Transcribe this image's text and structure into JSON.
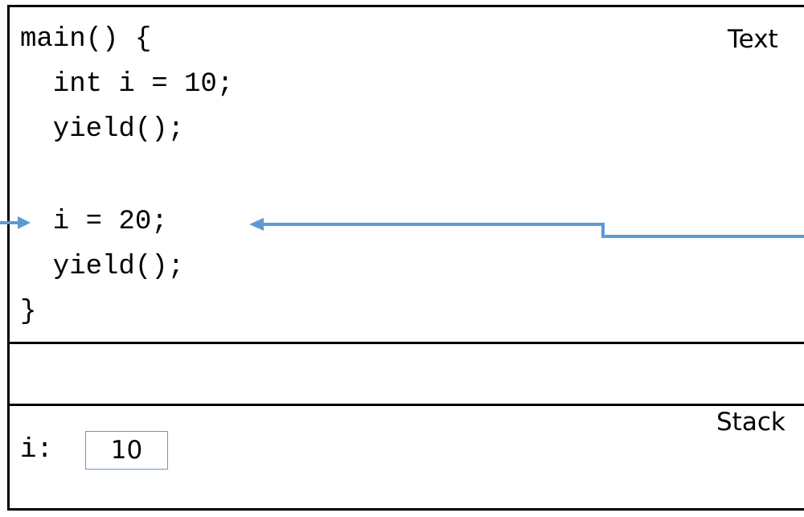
{
  "segments": {
    "text_label": "Text",
    "heap_label": "",
    "stack_label": "Stack"
  },
  "code": {
    "lines": [
      "main() {",
      "  int i = 10;",
      "  yield();",
      "",
      "  i = 20;",
      "  yield();",
      "}"
    ]
  },
  "stack": {
    "var_name": "i:",
    "var_value": "10"
  },
  "colors": {
    "arrow": "#5b9bd5",
    "border": "#000000"
  }
}
